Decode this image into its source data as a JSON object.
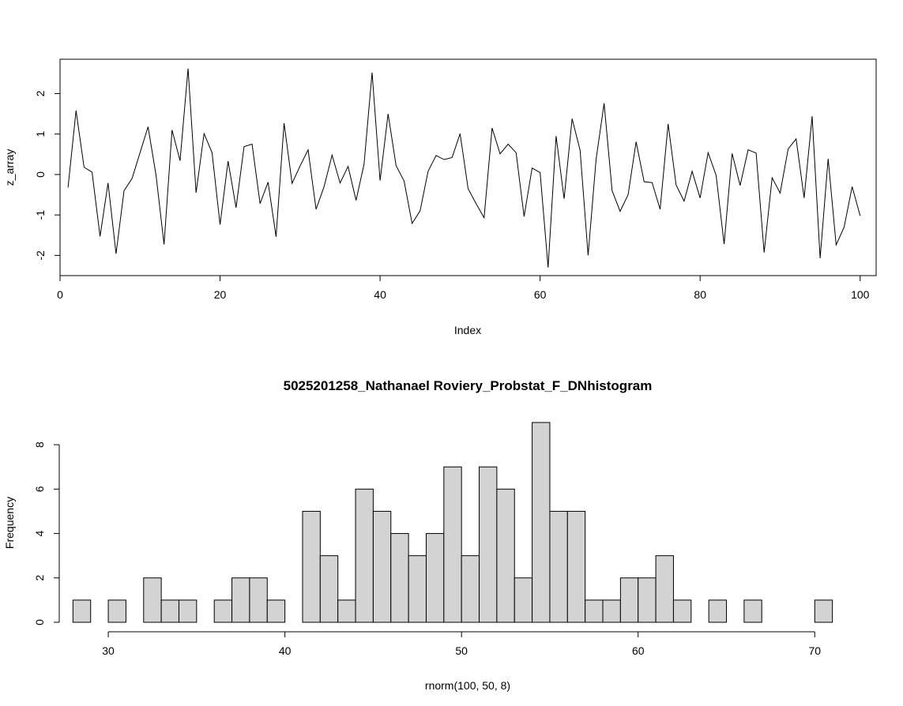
{
  "chart_data": [
    {
      "type": "line",
      "title": "",
      "xlabel": "Index",
      "ylabel": "z_array",
      "xlim": [
        0,
        102
      ],
      "ylim": [
        -2.5,
        2.85
      ],
      "xticks": [
        0,
        20,
        40,
        60,
        80,
        100
      ],
      "yticks": [
        -2,
        -1,
        0,
        1,
        2
      ],
      "grid": false,
      "line_color": "#000000",
      "series": [
        {
          "x": [
            1,
            2,
            3,
            4,
            5,
            6,
            7,
            8,
            9,
            10,
            11,
            12,
            13,
            14,
            15,
            16,
            17,
            18,
            19,
            20,
            21,
            22,
            23,
            24,
            25,
            26,
            27,
            28,
            29,
            30,
            31,
            32,
            33,
            34,
            35,
            36,
            37,
            38,
            39,
            40,
            41,
            42,
            43,
            44,
            45,
            46,
            47,
            48,
            49,
            50,
            51,
            52,
            53,
            54,
            55,
            56,
            57,
            58,
            59,
            60,
            61,
            62,
            63,
            64,
            65,
            66,
            67,
            68,
            69,
            70,
            71,
            72,
            73,
            74,
            75,
            76,
            77,
            78,
            79,
            80,
            81,
            82,
            83,
            84,
            85,
            86,
            87,
            88,
            89,
            90,
            91,
            92,
            93,
            94,
            95,
            96,
            97,
            98,
            99,
            100
          ],
          "values": [
            -0.32,
            1.58,
            0.18,
            0.06,
            -1.53,
            -0.21,
            -1.96,
            -0.4,
            -0.1,
            0.54,
            1.18,
            -0.02,
            -1.73,
            1.1,
            0.34,
            2.62,
            -0.45,
            1.01,
            0.54,
            -1.24,
            0.33,
            -0.82,
            0.69,
            0.75,
            -0.72,
            -0.19,
            -1.54,
            1.27,
            -0.22,
            0.21,
            0.61,
            -0.86,
            -0.3,
            0.48,
            -0.21,
            0.2,
            -0.64,
            0.26,
            2.52,
            -0.15,
            1.5,
            0.22,
            -0.16,
            -1.21,
            -0.9,
            0.08,
            0.47,
            0.37,
            0.42,
            1.01,
            -0.35,
            -0.72,
            -1.07,
            1.15,
            0.51,
            0.75,
            0.54,
            -1.04,
            0.16,
            0.05,
            -2.3,
            0.95,
            -0.6,
            1.38,
            0.6,
            -2.0,
            0.38,
            1.76,
            -0.4,
            -0.91,
            -0.5,
            0.81,
            -0.18,
            -0.2,
            -0.86,
            1.25,
            -0.26,
            -0.66,
            0.08,
            -0.58,
            0.54,
            -0.02,
            -1.72,
            0.52,
            -0.27,
            0.61,
            0.53,
            -1.93,
            -0.08,
            -0.46,
            0.63,
            0.88,
            -0.58,
            1.44,
            -2.07,
            0.39,
            -1.74,
            -1.3,
            -0.3,
            -1.02
          ]
        }
      ]
    },
    {
      "type": "bar",
      "title": "5025201258_Nathanael Roviery_Probstat_F_DNhistogram",
      "xlabel": "rnorm(100, 50, 8)",
      "ylabel": "Frequency",
      "xlim": [
        27,
        72
      ],
      "ylim": [
        0,
        9
      ],
      "xticks": [
        30,
        40,
        50,
        60,
        70
      ],
      "yticks": [
        0,
        2,
        4,
        6,
        8
      ],
      "grid": false,
      "bar_fill": "#d3d3d3",
      "bar_edge": "#000000",
      "bin_start": 28,
      "bin_width": 1,
      "categories": [
        "28-29",
        "29-30",
        "30-31",
        "31-32",
        "32-33",
        "33-34",
        "34-35",
        "35-36",
        "36-37",
        "37-38",
        "38-39",
        "39-40",
        "40-41",
        "41-42",
        "42-43",
        "43-44",
        "44-45",
        "45-46",
        "46-47",
        "47-48",
        "48-49",
        "49-50",
        "50-51",
        "51-52",
        "52-53",
        "53-54",
        "54-55",
        "55-56",
        "56-57",
        "57-58",
        "58-59",
        "59-60",
        "60-61",
        "61-62",
        "62-63",
        "63-64",
        "64-65",
        "65-66",
        "66-67",
        "67-68",
        "68-69",
        "69-70",
        "70-71"
      ],
      "values": [
        1,
        0,
        1,
        0,
        2,
        1,
        1,
        0,
        1,
        2,
        2,
        1,
        0,
        5,
        3,
        1,
        6,
        5,
        4,
        3,
        4,
        7,
        3,
        7,
        6,
        2,
        9,
        5,
        5,
        1,
        1,
        2,
        2,
        3,
        1,
        0,
        1,
        0,
        1,
        0,
        0,
        0,
        1
      ]
    }
  ]
}
